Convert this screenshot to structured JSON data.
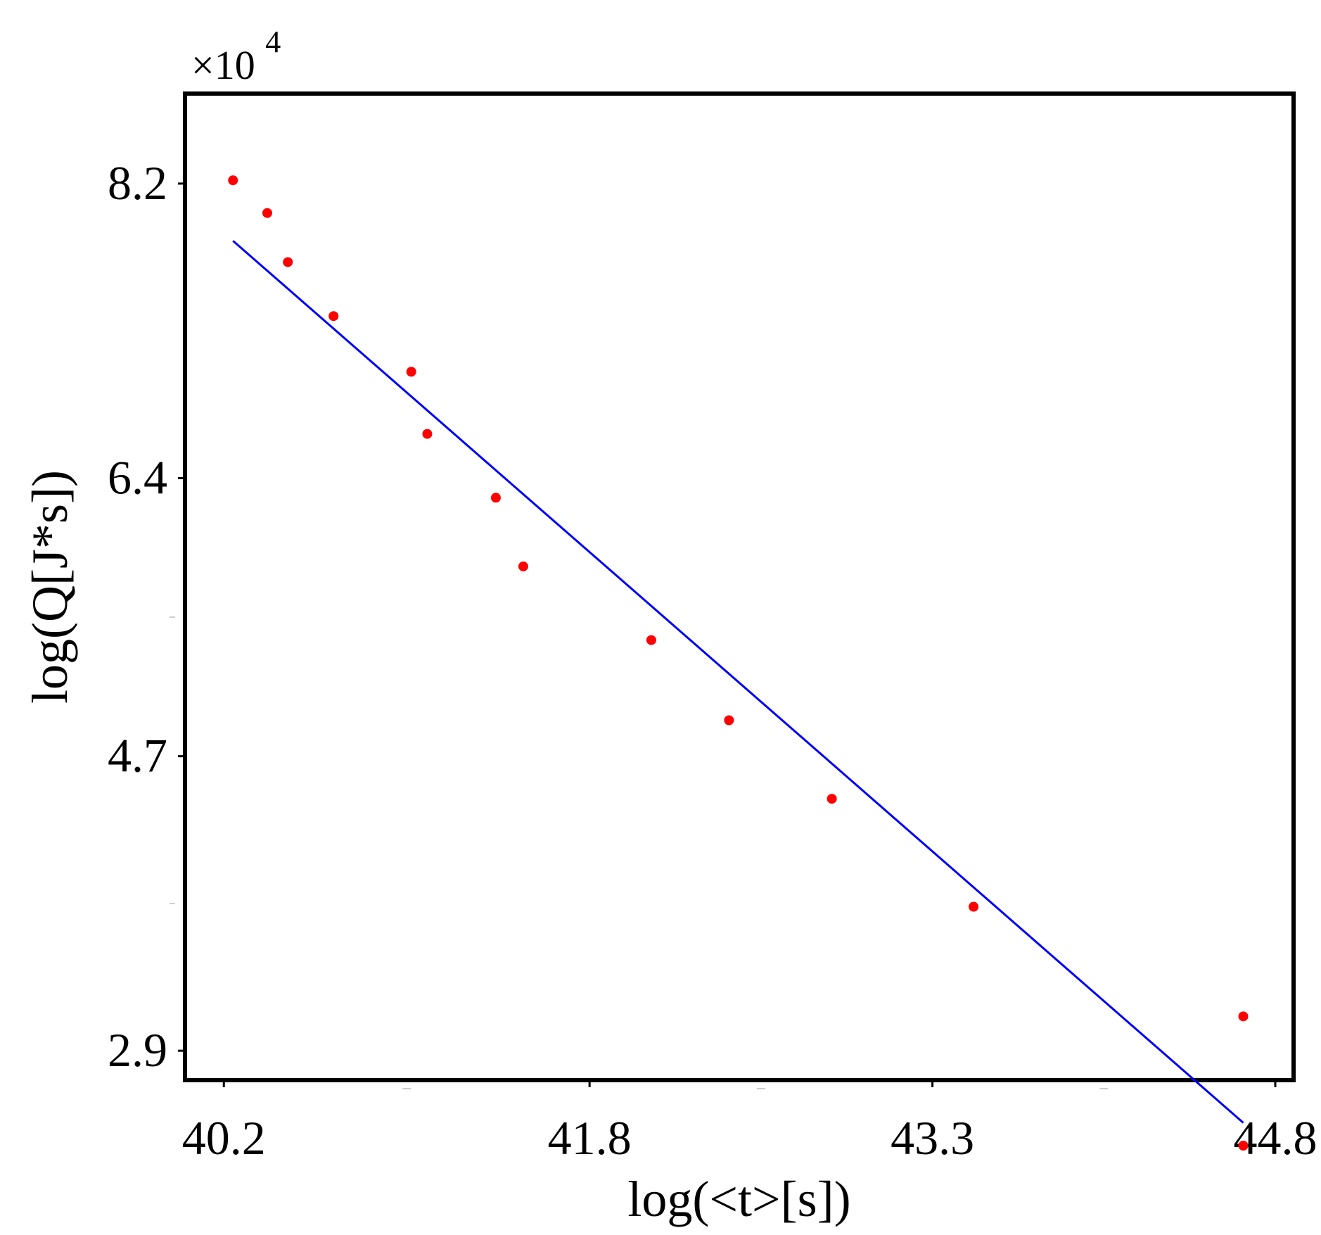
{
  "chart_data": {
    "type": "scatter",
    "xlabel": "log(<t>[s])",
    "ylabel": "log(Q[J*s])",
    "y_multiplier_base": "×10",
    "y_multiplier_exponent": "4",
    "xlim": [
      40.03,
      44.88
    ],
    "ylim": [
      2.72,
      8.75
    ],
    "x_ticks": [
      {
        "value": 40.2,
        "label": "40.2"
      },
      {
        "value": 41.8,
        "label": "41.8"
      },
      {
        "value": 43.3,
        "label": "43.3"
      },
      {
        "value": 44.8,
        "label": "44.8"
      }
    ],
    "y_ticks": [
      {
        "value": 8.2,
        "label": "8.2"
      },
      {
        "value": 6.4,
        "label": "6.4"
      },
      {
        "value": 4.7,
        "label": "4.7"
      },
      {
        "value": 2.9,
        "label": "2.9"
      }
    ],
    "x_minor_ticks": [
      41.0,
      42.55,
      44.05
    ],
    "y_minor_ticks": [
      5.55,
      3.8
    ],
    "grid": false,
    "series": [
      {
        "kind": "points",
        "color": "#ff0000",
        "x": [
          40.24,
          40.39,
          40.48,
          40.68,
          41.02,
          41.09,
          41.39,
          41.51,
          42.07,
          42.41,
          42.86,
          43.48,
          44.66,
          44.66
        ],
        "y": [
          8.22,
          8.02,
          7.72,
          7.39,
          7.05,
          6.67,
          6.28,
          5.86,
          5.41,
          4.92,
          4.44,
          3.78,
          3.11,
          2.32
        ]
      },
      {
        "kind": "line",
        "color": "#0000ff",
        "x": [
          40.24,
          44.66
        ],
        "y": [
          7.85,
          2.46
        ]
      }
    ]
  }
}
